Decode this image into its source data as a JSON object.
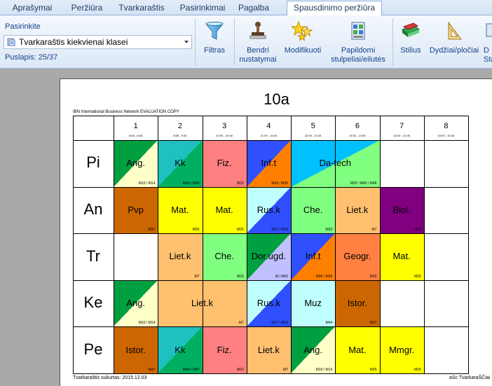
{
  "tabs": [
    {
      "label": "Aprašymai",
      "active": false
    },
    {
      "label": "Peržiūra",
      "active": false
    },
    {
      "label": "Tvarkaraštis",
      "active": false
    },
    {
      "label": "Pasirinkimai",
      "active": false
    },
    {
      "label": "Pagalba",
      "active": false
    },
    {
      "label": "Spausdinimo peržiūra",
      "active": true
    }
  ],
  "ribbon": {
    "group_label": "Pasirinkite",
    "selection_value": "Tvarkaraštis kiekvienai klasei",
    "page_label": "Puslapis: 25/37",
    "buttons": [
      {
        "name": "filter-button",
        "icon": "funnel-icon",
        "label": "Filtras"
      },
      {
        "name": "general-settings-button",
        "icon": "stamp-icon",
        "label": "Bendri nustatymai"
      },
      {
        "name": "modifiers-button",
        "icon": "stars-icon",
        "label": "Modifikuoti"
      },
      {
        "name": "extra-columns-button",
        "icon": "columns-icon",
        "label": "Papildomi stulpeliai/eilutės"
      },
      {
        "name": "style-button",
        "icon": "books-icon",
        "label": "Stilius"
      },
      {
        "name": "size-button",
        "icon": "ruler-triangle-icon",
        "label": "Dydžiai/pločiai"
      },
      {
        "name": "display-button",
        "icon": "display-icon",
        "label": "D Sta"
      }
    ]
  },
  "sheet": {
    "title": "10a",
    "eval_note": "IBN International Business Network EVALUATION COPY",
    "footer_left": "Tvarkaraštis sukurtas: 2015.12.03",
    "footer_right": "aSc TvarkaraŠČiai",
    "periods": [
      {
        "num": "1",
        "time": "8:00 - 8:45"
      },
      {
        "num": "2",
        "time": "8:55 - 9:40"
      },
      {
        "num": "3",
        "time": "10:00 - 10:45"
      },
      {
        "num": "4",
        "time": "11:00 - 11:45"
      },
      {
        "num": "5",
        "time": "12:00 - 12:45"
      },
      {
        "num": "6",
        "time": "13:00 - 13:45"
      },
      {
        "num": "7",
        "time": "14:00 - 14:45"
      },
      {
        "num": "8",
        "time": "15:00 - 15:45"
      }
    ],
    "days": [
      "Pi",
      "An",
      "Tr",
      "Ke",
      "Pe"
    ],
    "lessons": [
      {
        "day": 0,
        "start": 0,
        "span": 1,
        "subject": "Ang.",
        "room": "M10 / M14",
        "bg": "#ffffc8",
        "split": "#00a040"
      },
      {
        "day": 0,
        "start": 1,
        "span": 1,
        "subject": "Kk",
        "room": "M49 / M50",
        "bg": "#00b060",
        "split": "#20c0c0"
      },
      {
        "day": 0,
        "start": 2,
        "span": 1,
        "subject": "Fiz.",
        "room": "M32",
        "bg": "#ff8080",
        "split": ""
      },
      {
        "day": 0,
        "start": 3,
        "span": 1,
        "subject": "Inf.t",
        "room": "M35 / M36",
        "bg": "#ff8000",
        "split": "#3050ff"
      },
      {
        "day": 0,
        "start": 4,
        "span": 2,
        "subject": "Da-tech",
        "room": "M32 / M42 / M46",
        "bg": "#80ff80",
        "split": "#00c0ff"
      },
      {
        "day": 1,
        "start": 0,
        "span": 1,
        "subject": "Pvp",
        "room": "M37",
        "bg": "#cc6600",
        "split": ""
      },
      {
        "day": 1,
        "start": 1,
        "span": 1,
        "subject": "Mat.",
        "room": "M25",
        "bg": "#ffff00",
        "split": ""
      },
      {
        "day": 1,
        "start": 2,
        "span": 1,
        "subject": "Mat.",
        "room": "M25",
        "bg": "#ffff00",
        "split": ""
      },
      {
        "day": 1,
        "start": 3,
        "span": 1,
        "subject": "Rus.k",
        "room": "M17 / M33",
        "bg": "#3050ff",
        "split": "#c0ffff"
      },
      {
        "day": 1,
        "start": 4,
        "span": 1,
        "subject": "Che.",
        "room": "M33",
        "bg": "#80ff80",
        "split": ""
      },
      {
        "day": 1,
        "start": 5,
        "span": 1,
        "subject": "Liet.k",
        "room": "M7",
        "bg": "#ffc070",
        "split": ""
      },
      {
        "day": 1,
        "start": 6,
        "span": 1,
        "subject": "Biol.",
        "room": "M30",
        "bg": "#800080",
        "split": ""
      },
      {
        "day": 2,
        "start": 1,
        "span": 1,
        "subject": "Liet.k",
        "room": "M7",
        "bg": "#ffc070",
        "split": ""
      },
      {
        "day": 2,
        "start": 2,
        "span": 1,
        "subject": "Che.",
        "room": "M33",
        "bg": "#80ff80",
        "split": ""
      },
      {
        "day": 2,
        "start": 3,
        "span": 1,
        "subject": "Dor.ugd.",
        "room": "M / M66",
        "bg": "#c0c0ff",
        "split": "#00a040"
      },
      {
        "day": 2,
        "start": 4,
        "span": 1,
        "subject": "Inf.t",
        "room": "M35 / M36",
        "bg": "#ff8000",
        "split": "#3050ff"
      },
      {
        "day": 2,
        "start": 5,
        "span": 1,
        "subject": "Geogr.",
        "room": "M25",
        "bg": "#ff8040",
        "split": ""
      },
      {
        "day": 2,
        "start": 6,
        "span": 1,
        "subject": "Mat.",
        "room": "M25",
        "bg": "#ffff00",
        "split": ""
      },
      {
        "day": 3,
        "start": 0,
        "span": 1,
        "subject": "Ang.",
        "room": "M10 / M14",
        "bg": "#ffffc8",
        "split": "#00a040"
      },
      {
        "day": 3,
        "start": 1,
        "span": 2,
        "subject": "Liet.k",
        "room": "M7",
        "bg": "#ffc070",
        "split": ""
      },
      {
        "day": 3,
        "start": 3,
        "span": 1,
        "subject": "Rus.k",
        "room": "M17 / M33",
        "bg": "#3050ff",
        "split": "#c0ffff"
      },
      {
        "day": 3,
        "start": 4,
        "span": 1,
        "subject": "Muz",
        "room": "M44",
        "bg": "#c0ffff",
        "split": ""
      },
      {
        "day": 3,
        "start": 5,
        "span": 1,
        "subject": "Istor.",
        "room": "M37",
        "bg": "#cc6600",
        "split": ""
      },
      {
        "day": 4,
        "start": 0,
        "span": 1,
        "subject": "Istor.",
        "room": "M37",
        "bg": "#cc6600",
        "split": ""
      },
      {
        "day": 4,
        "start": 1,
        "span": 1,
        "subject": "Kk",
        "room": "M49 / M50",
        "bg": "#00b060",
        "split": "#20c0c0"
      },
      {
        "day": 4,
        "start": 2,
        "span": 1,
        "subject": "Fiz.",
        "room": "M32",
        "bg": "#ff8080",
        "split": ""
      },
      {
        "day": 4,
        "start": 3,
        "span": 1,
        "subject": "Liet.k",
        "room": "M7",
        "bg": "#ffc070",
        "split": ""
      },
      {
        "day": 4,
        "start": 4,
        "span": 1,
        "subject": "Ang.",
        "room": "M10 / M14",
        "bg": "#ffffc8",
        "split": "#00a040"
      },
      {
        "day": 4,
        "start": 5,
        "span": 1,
        "subject": "Mat.",
        "room": "M25",
        "bg": "#ffff00",
        "split": ""
      },
      {
        "day": 4,
        "start": 6,
        "span": 1,
        "subject": "Mmgr.",
        "room": "M25",
        "bg": "#ffff00",
        "split": ""
      }
    ]
  }
}
